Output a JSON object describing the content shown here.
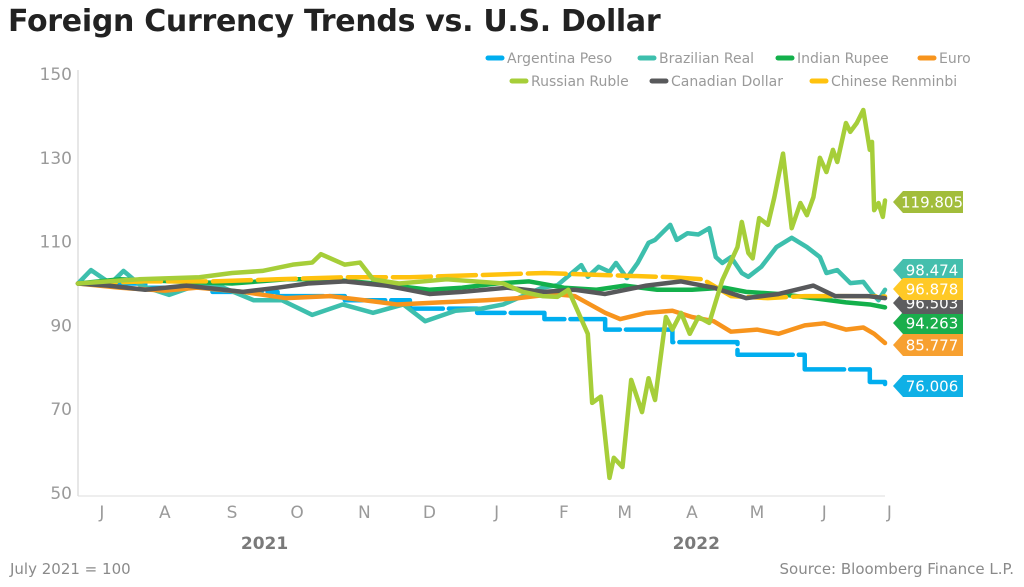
{
  "chart_data": {
    "type": "line",
    "title": "Foreign Currency Trends vs. U.S. Dollar",
    "note": "July 2021 = 100",
    "source": "Source: Bloomberg Finance L.P.",
    "ylim": [
      50,
      150
    ],
    "yticks": [
      50,
      70,
      90,
      110,
      130,
      150
    ],
    "xlim": [
      "2021-07-01",
      "2022-07-08"
    ],
    "xticks": [
      {
        "label": "J",
        "date": "2021-07-12"
      },
      {
        "label": "A",
        "date": "2021-08-10"
      },
      {
        "label": "S",
        "date": "2021-09-10"
      },
      {
        "label": "O",
        "date": "2021-10-10"
      },
      {
        "label": "N",
        "date": "2021-11-10"
      },
      {
        "label": "D",
        "date": "2021-12-10"
      },
      {
        "label": "J",
        "date": "2022-01-10"
      },
      {
        "label": "F",
        "date": "2022-02-10"
      },
      {
        "label": "M",
        "date": "2022-03-10"
      },
      {
        "label": "A",
        "date": "2022-04-10"
      },
      {
        "label": "M",
        "date": "2022-05-10"
      },
      {
        "label": "J",
        "date": "2022-06-10"
      },
      {
        "label": "J",
        "date": "2022-07-10"
      }
    ],
    "years": [
      {
        "label": "2021",
        "date": "2021-09-25"
      },
      {
        "label": "2022",
        "date": "2022-04-12"
      }
    ],
    "grid": false,
    "legend_position": "top-right",
    "series": [
      {
        "name": "Argentina Peso",
        "color": "#00aeef",
        "step": true,
        "last": "76.006",
        "points": [
          [
            "2021-07-01",
            100
          ],
          [
            "2021-08-01",
            99
          ],
          [
            "2021-09-01",
            98
          ],
          [
            "2021-10-01",
            97
          ],
          [
            "2021-11-01",
            96
          ],
          [
            "2021-12-01",
            94
          ],
          [
            "2022-01-01",
            93
          ],
          [
            "2022-02-01",
            91.5
          ],
          [
            "2022-03-01",
            89
          ],
          [
            "2022-04-01",
            86
          ],
          [
            "2022-05-01",
            83
          ],
          [
            "2022-06-01",
            79.5
          ],
          [
            "2022-07-01",
            76.5
          ],
          [
            "2022-07-08",
            76
          ]
        ]
      },
      {
        "name": "Brazilian Real",
        "color": "#3dbfad",
        "last": "98.474",
        "points": [
          [
            "2021-07-01",
            100
          ],
          [
            "2021-07-07",
            103.2
          ],
          [
            "2021-07-16",
            100
          ],
          [
            "2021-07-22",
            103
          ],
          [
            "2021-07-30",
            99.5
          ],
          [
            "2021-08-12",
            97.3
          ],
          [
            "2021-08-27",
            100
          ],
          [
            "2021-09-06",
            99
          ],
          [
            "2021-09-20",
            96
          ],
          [
            "2021-10-03",
            96
          ],
          [
            "2021-10-17",
            92.5
          ],
          [
            "2021-10-31",
            95
          ],
          [
            "2021-11-14",
            93
          ],
          [
            "2021-11-28",
            95
          ],
          [
            "2021-12-08",
            91
          ],
          [
            "2021-12-22",
            93.5
          ],
          [
            "2022-01-03",
            94
          ],
          [
            "2022-01-13",
            95
          ],
          [
            "2022-01-22",
            97
          ],
          [
            "2022-01-31",
            99
          ],
          [
            "2022-02-07",
            99.6
          ],
          [
            "2022-02-18",
            104.4
          ],
          [
            "2022-02-21",
            101.6
          ],
          [
            "2022-02-26",
            104
          ],
          [
            "2022-03-03",
            102.8
          ],
          [
            "2022-03-06",
            104.9
          ],
          [
            "2022-03-11",
            101.3
          ],
          [
            "2022-03-16",
            104.9
          ],
          [
            "2022-03-21",
            109.7
          ],
          [
            "2022-03-24",
            110.4
          ],
          [
            "2022-03-31",
            114
          ],
          [
            "2022-04-03",
            110.4
          ],
          [
            "2022-04-08",
            112
          ],
          [
            "2022-04-13",
            111.7
          ],
          [
            "2022-04-18",
            113.2
          ],
          [
            "2022-04-21",
            106.3
          ],
          [
            "2022-04-24",
            104.9
          ],
          [
            "2022-04-28",
            106.3
          ],
          [
            "2022-05-03",
            102.5
          ],
          [
            "2022-05-06",
            101.6
          ],
          [
            "2022-05-12",
            104
          ],
          [
            "2022-05-19",
            108.7
          ],
          [
            "2022-05-26",
            110.9
          ],
          [
            "2022-06-02",
            108.7
          ],
          [
            "2022-06-08",
            106.3
          ],
          [
            "2022-06-11",
            102.5
          ],
          [
            "2022-06-16",
            103.2
          ],
          [
            "2022-06-22",
            100.1
          ],
          [
            "2022-06-28",
            100.4
          ],
          [
            "2022-07-02",
            97.7
          ],
          [
            "2022-07-05",
            96
          ],
          [
            "2022-07-08",
            98.5
          ]
        ]
      },
      {
        "name": "Indian Rupee",
        "color": "#13b04b",
        "last": "94.263",
        "points": [
          [
            "2021-07-01",
            100
          ],
          [
            "2021-07-20",
            101
          ],
          [
            "2021-08-15",
            100.5
          ],
          [
            "2021-09-10",
            100
          ],
          [
            "2021-10-05",
            101
          ],
          [
            "2021-10-25",
            101
          ],
          [
            "2021-11-15",
            100
          ],
          [
            "2021-12-10",
            98.5
          ],
          [
            "2021-12-25",
            99
          ],
          [
            "2022-01-10",
            100
          ],
          [
            "2022-01-25",
            100.5
          ],
          [
            "2022-02-10",
            99
          ],
          [
            "2022-02-25",
            98.5
          ],
          [
            "2022-03-10",
            99.5
          ],
          [
            "2022-03-25",
            98.5
          ],
          [
            "2022-04-10",
            98.5
          ],
          [
            "2022-04-25",
            99
          ],
          [
            "2022-05-05",
            98
          ],
          [
            "2022-05-20",
            97.5
          ],
          [
            "2022-06-05",
            96.5
          ],
          [
            "2022-06-20",
            95.5
          ],
          [
            "2022-07-01",
            95
          ],
          [
            "2022-07-08",
            94.3
          ]
        ]
      },
      {
        "name": "Euro",
        "color": "#f7941d",
        "last": "85.777",
        "points": [
          [
            "2021-07-01",
            100
          ],
          [
            "2021-07-20",
            99
          ],
          [
            "2021-08-10",
            98.3
          ],
          [
            "2021-08-25",
            99
          ],
          [
            "2021-09-15",
            98
          ],
          [
            "2021-10-05",
            96.5
          ],
          [
            "2021-10-25",
            97
          ],
          [
            "2021-11-10",
            96
          ],
          [
            "2021-11-25",
            95
          ],
          [
            "2021-12-15",
            95.5
          ],
          [
            "2022-01-05",
            96
          ],
          [
            "2022-01-20",
            96.5
          ],
          [
            "2022-02-05",
            97.5
          ],
          [
            "2022-02-15",
            97
          ],
          [
            "2022-03-01",
            93
          ],
          [
            "2022-03-08",
            91.5
          ],
          [
            "2022-03-20",
            93
          ],
          [
            "2022-04-01",
            93.5
          ],
          [
            "2022-04-10",
            92
          ],
          [
            "2022-04-20",
            91
          ],
          [
            "2022-04-28",
            88.5
          ],
          [
            "2022-05-10",
            89
          ],
          [
            "2022-05-20",
            88
          ],
          [
            "2022-06-01",
            90
          ],
          [
            "2022-06-10",
            90.5
          ],
          [
            "2022-06-20",
            89
          ],
          [
            "2022-06-28",
            89.5
          ],
          [
            "2022-07-03",
            88
          ],
          [
            "2022-07-08",
            85.8
          ]
        ]
      },
      {
        "name": "Russian Ruble",
        "color": "#a6ce39",
        "last": "119.805",
        "points": [
          [
            "2021-07-01",
            100
          ],
          [
            "2021-07-29",
            101
          ],
          [
            "2021-08-26",
            101.5
          ],
          [
            "2021-09-10",
            102.5
          ],
          [
            "2021-09-24",
            103
          ],
          [
            "2021-10-08",
            104.5
          ],
          [
            "2021-10-17",
            105
          ],
          [
            "2021-10-21",
            107
          ],
          [
            "2021-11-01",
            104.5
          ],
          [
            "2021-11-08",
            105
          ],
          [
            "2021-11-14",
            101
          ],
          [
            "2021-11-26",
            100
          ],
          [
            "2021-12-18",
            101
          ],
          [
            "2022-01-13",
            100
          ],
          [
            "2022-01-22",
            98
          ],
          [
            "2022-01-31",
            97
          ],
          [
            "2022-02-07",
            96.8
          ],
          [
            "2022-02-12",
            98.5
          ],
          [
            "2022-02-21",
            88
          ],
          [
            "2022-02-23",
            71.5
          ],
          [
            "2022-02-27",
            73
          ],
          [
            "2022-03-03",
            53.6
          ],
          [
            "2022-03-05",
            58.4
          ],
          [
            "2022-03-09",
            56.2
          ],
          [
            "2022-03-13",
            77
          ],
          [
            "2022-03-18",
            69.3
          ],
          [
            "2022-03-21",
            77.4
          ],
          [
            "2022-03-24",
            72.2
          ],
          [
            "2022-03-29",
            92
          ],
          [
            "2022-04-01",
            89
          ],
          [
            "2022-04-05",
            93
          ],
          [
            "2022-04-09",
            88
          ],
          [
            "2022-04-13",
            92
          ],
          [
            "2022-04-18",
            90.6
          ],
          [
            "2022-04-24",
            100.8
          ],
          [
            "2022-05-01",
            108.7
          ],
          [
            "2022-05-03",
            114.7
          ],
          [
            "2022-05-06",
            107.3
          ],
          [
            "2022-05-08",
            106
          ],
          [
            "2022-05-11",
            115.6
          ],
          [
            "2022-05-15",
            114
          ],
          [
            "2022-05-18",
            120.6
          ],
          [
            "2022-05-22",
            131
          ],
          [
            "2022-05-26",
            113.2
          ],
          [
            "2022-05-30",
            119.2
          ],
          [
            "2022-06-02",
            116.3
          ],
          [
            "2022-06-05",
            120.6
          ],
          [
            "2022-06-08",
            130
          ],
          [
            "2022-06-11",
            126.6
          ],
          [
            "2022-06-14",
            131.9
          ],
          [
            "2022-06-16",
            129
          ],
          [
            "2022-06-20",
            138.3
          ],
          [
            "2022-06-22",
            136.2
          ],
          [
            "2022-06-25",
            138.3
          ],
          [
            "2022-06-28",
            141.4
          ],
          [
            "2022-07-01",
            131.9
          ],
          [
            "2022-07-02",
            133.8
          ],
          [
            "2022-07-03",
            117.5
          ],
          [
            "2022-07-05",
            119.2
          ],
          [
            "2022-07-07",
            115.9
          ],
          [
            "2022-07-08",
            119.8
          ]
        ]
      },
      {
        "name": "Canadian Dollar",
        "color": "#58595b",
        "last": "96.503",
        "points": [
          [
            "2021-07-01",
            100
          ],
          [
            "2021-07-15",
            99.5
          ],
          [
            "2021-08-01",
            98.5
          ],
          [
            "2021-08-20",
            99.5
          ],
          [
            "2021-09-15",
            98
          ],
          [
            "2021-10-01",
            99
          ],
          [
            "2021-10-15",
            100
          ],
          [
            "2021-11-01",
            100.5
          ],
          [
            "2021-11-20",
            99.5
          ],
          [
            "2021-12-10",
            97.5
          ],
          [
            "2021-12-25",
            98
          ],
          [
            "2022-01-15",
            99
          ],
          [
            "2022-02-01",
            98
          ],
          [
            "2022-02-15",
            98.5
          ],
          [
            "2022-03-01",
            97.5
          ],
          [
            "2022-03-20",
            99.5
          ],
          [
            "2022-04-05",
            100.5
          ],
          [
            "2022-04-20",
            99
          ],
          [
            "2022-05-05",
            96.5
          ],
          [
            "2022-05-20",
            97.5
          ],
          [
            "2022-06-05",
            99.5
          ],
          [
            "2022-06-15",
            97
          ],
          [
            "2022-06-30",
            97
          ],
          [
            "2022-07-08",
            96.5
          ]
        ]
      },
      {
        "name": "Chinese Renminbi",
        "color": "#ffc20e",
        "dashed": true,
        "last": "96.878",
        "points": [
          [
            "2021-07-01",
            100
          ],
          [
            "2021-08-01",
            100.5
          ],
          [
            "2021-09-01",
            100.5
          ],
          [
            "2021-10-01",
            101
          ],
          [
            "2021-11-01",
            101.5
          ],
          [
            "2021-12-01",
            101.5
          ],
          [
            "2022-01-01",
            102
          ],
          [
            "2022-02-01",
            102.5
          ],
          [
            "2022-03-01",
            102
          ],
          [
            "2022-04-01",
            101.5
          ],
          [
            "2022-04-15",
            101
          ],
          [
            "2022-04-28",
            97
          ],
          [
            "2022-05-15",
            96.5
          ],
          [
            "2022-06-01",
            97
          ],
          [
            "2022-06-20",
            97
          ],
          [
            "2022-07-08",
            96.9
          ]
        ]
      }
    ]
  }
}
